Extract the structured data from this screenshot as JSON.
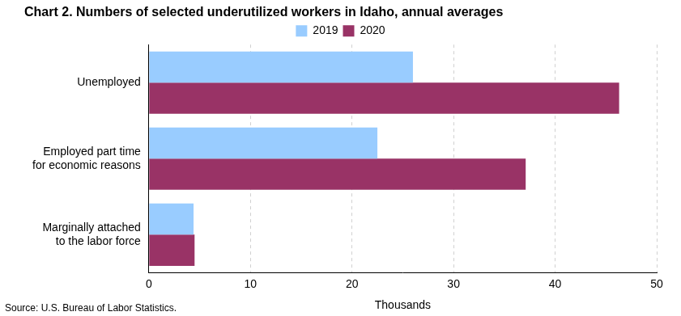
{
  "chart_data": {
    "type": "bar",
    "title": "Chart 2. Numbers of selected underutilized workers in Idaho, annual averages",
    "source": "Source: U.S. Bureau of Labor Statistics.",
    "x_label": "Thousands",
    "orientation": "horizontal",
    "categories": [
      "Unemployed",
      [
        "Employed part time",
        "for economic reasons"
      ],
      [
        "Marginally attached",
        "to the labor force"
      ]
    ],
    "series": [
      {
        "name": "2019",
        "color": "#99ccff",
        "values": [
          26.0,
          22.5,
          4.4
        ]
      },
      {
        "name": "2020",
        "color": "#993366",
        "values": [
          46.3,
          37.1,
          4.5
        ]
      }
    ],
    "xlim": [
      0,
      50
    ],
    "xticks": [
      0,
      10,
      20,
      30,
      40,
      50
    ],
    "grid": true,
    "legend": "top"
  }
}
